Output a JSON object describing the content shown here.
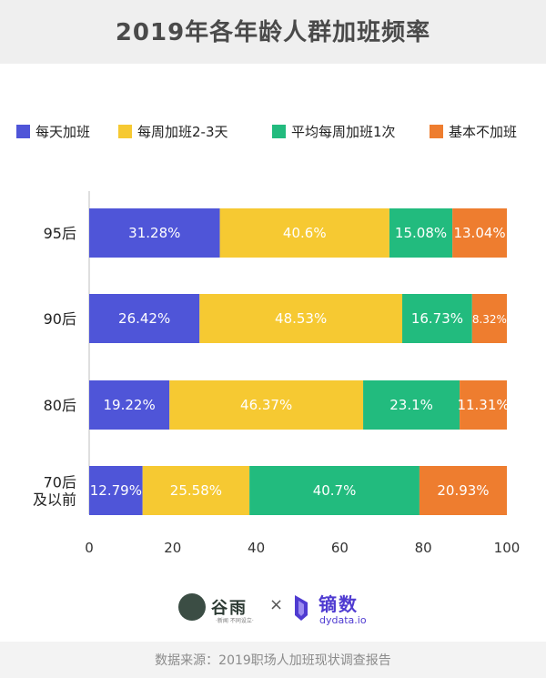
{
  "header": {
    "title": "2019年各年龄人群加班频率"
  },
  "colors": {
    "series": [
      "#4f55d8",
      "#f6c932",
      "#22bb7e",
      "#ee7d2f"
    ]
  },
  "chart_data": {
    "type": "bar",
    "orientation": "horizontal",
    "stacked": true,
    "title": "2019年各年龄人群加班频率",
    "categories": [
      "95后",
      "90后",
      "80后",
      "70后\n及以前"
    ],
    "series": [
      {
        "name": "每天加班",
        "values": [
          31.28,
          26.42,
          19.22,
          12.79
        ],
        "labels": [
          "31.28%",
          "26.42%",
          "19.22%",
          "12.79%"
        ]
      },
      {
        "name": "每周加班2-3天",
        "values": [
          40.6,
          48.53,
          46.37,
          25.58
        ],
        "labels": [
          "40.6%",
          "48.53%",
          "46.37%",
          "25.58%"
        ]
      },
      {
        "name": "平均每周加班1次",
        "values": [
          15.08,
          16.73,
          23.1,
          40.7
        ],
        "labels": [
          "15.08%",
          "16.73%",
          "23.1%",
          "40.7%"
        ]
      },
      {
        "name": "基本不加班",
        "values": [
          13.04,
          8.32,
          11.31,
          20.93
        ],
        "labels": [
          "13.04%",
          "8.32%",
          "11.31%",
          "20.93%"
        ]
      }
    ],
    "xlim": [
      0,
      100
    ],
    "xticks": [
      0,
      20,
      40,
      60,
      80,
      100
    ],
    "grid": false,
    "legend": "top"
  },
  "logos": {
    "guyu": {
      "text": "谷雨",
      "sub": "·新闻 不同设立·"
    },
    "separator": "×",
    "dydata": {
      "text": "镝数",
      "sub": "dydata.io"
    }
  },
  "source": "数据来源：2019职场人加班现状调查报告"
}
